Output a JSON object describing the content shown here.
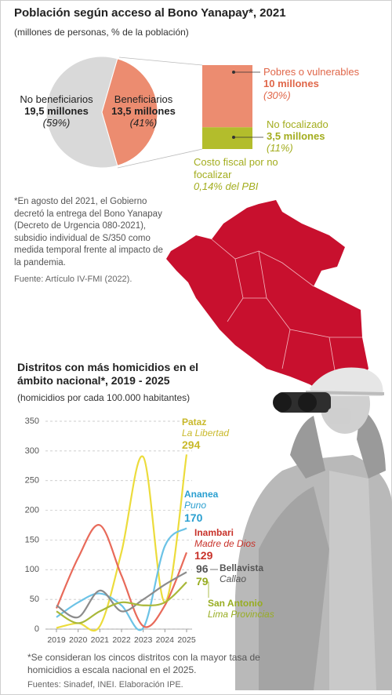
{
  "chart_data": [
    {
      "type": "pie",
      "title": "Población según acceso al Bono Yanapay*, 2021",
      "subtitle": "(millones de personas, % de la población)",
      "categories": [
        "No beneficiarios",
        "Beneficiarios"
      ],
      "values": [
        59,
        41
      ],
      "value_labels": [
        "(59%)",
        "(41%)"
      ],
      "colors": [
        "#d9d9d9",
        "#ec8c70"
      ],
      "amounts": [
        19.5,
        13.5
      ],
      "amount_labels": [
        "19,5 millones",
        "13,5 millones"
      ],
      "note": "*En agosto del 2021, el Gobierno decretó la entrega del Bono Yanapay (Decreto de Urgencia 080-2021), subsidio individual de S/350 como medida temporal frente al impacto de la pandemia.",
      "source": "Fuente: Artículo IV-FMI (2022)."
    },
    {
      "type": "bar",
      "stacked": true,
      "series": [
        {
          "name": "Pobres o vulnerables",
          "color": "#ec8c70",
          "label_color": "#e0674a",
          "values": [
            10
          ],
          "value_labels": [
            "10 millones"
          ],
          "shares": [
            30
          ],
          "share_labels": [
            "(30%)"
          ]
        },
        {
          "name": "No focalizado",
          "color": "#b3bd2c",
          "label_color": "#a3ad1e",
          "values": [
            3.5
          ],
          "value_labels": [
            "3,5 millones"
          ],
          "shares": [
            11
          ],
          "share_labels": [
            "(11%)"
          ]
        }
      ],
      "annotation": "Costo fiscal por no focalizar",
      "annotation_value": "0,14% del PBI"
    },
    {
      "type": "line",
      "title": "Distritos con más homicidios en el ámbito nacional*, 2019 - 2025",
      "subtitle": "(homicidios por cada 100.000 habitantes)",
      "x": [
        2019,
        2020,
        2021,
        2022,
        2023,
        2024,
        2025
      ],
      "ylim": [
        0,
        350
      ],
      "yticks": [
        0,
        50,
        100,
        150,
        200,
        250,
        300,
        350
      ],
      "grid": true,
      "series": [
        {
          "name": "Pataz",
          "region": "La Libertad",
          "color": "#ecdc3c",
          "label_color": "#c9b92a",
          "values": [
            2,
            10,
            5,
            130,
            290,
            45,
            294
          ]
        },
        {
          "name": "Ananea",
          "region": "Puno",
          "color": "#6cc3e6",
          "label_color": "#2a9fd0",
          "values": [
            20,
            45,
            60,
            40,
            2,
            140,
            170
          ]
        },
        {
          "name": "Inambari",
          "region": "Madre de Dios",
          "color": "#e86a5a",
          "label_color": "#c8322a",
          "values": [
            35,
            120,
            175,
            90,
            5,
            40,
            129
          ]
        },
        {
          "name": "Bellavista",
          "region": "Callao",
          "color": "#8c8c8c",
          "label_color": "#555555",
          "values": [
            40,
            20,
            65,
            30,
            50,
            75,
            96
          ]
        },
        {
          "name": "San Antonio",
          "region": "Lima Provincias",
          "color": "#a9b83a",
          "label_color": "#98ad22",
          "values": [
            30,
            10,
            30,
            45,
            40,
            45,
            79
          ]
        }
      ],
      "note": "*Se consideran los cincos distritos con la mayor tasa de homicidios a escala nacional en el 2025.",
      "source": "Fuentes: Sinadef, INEI. Elaboración IPE."
    }
  ]
}
